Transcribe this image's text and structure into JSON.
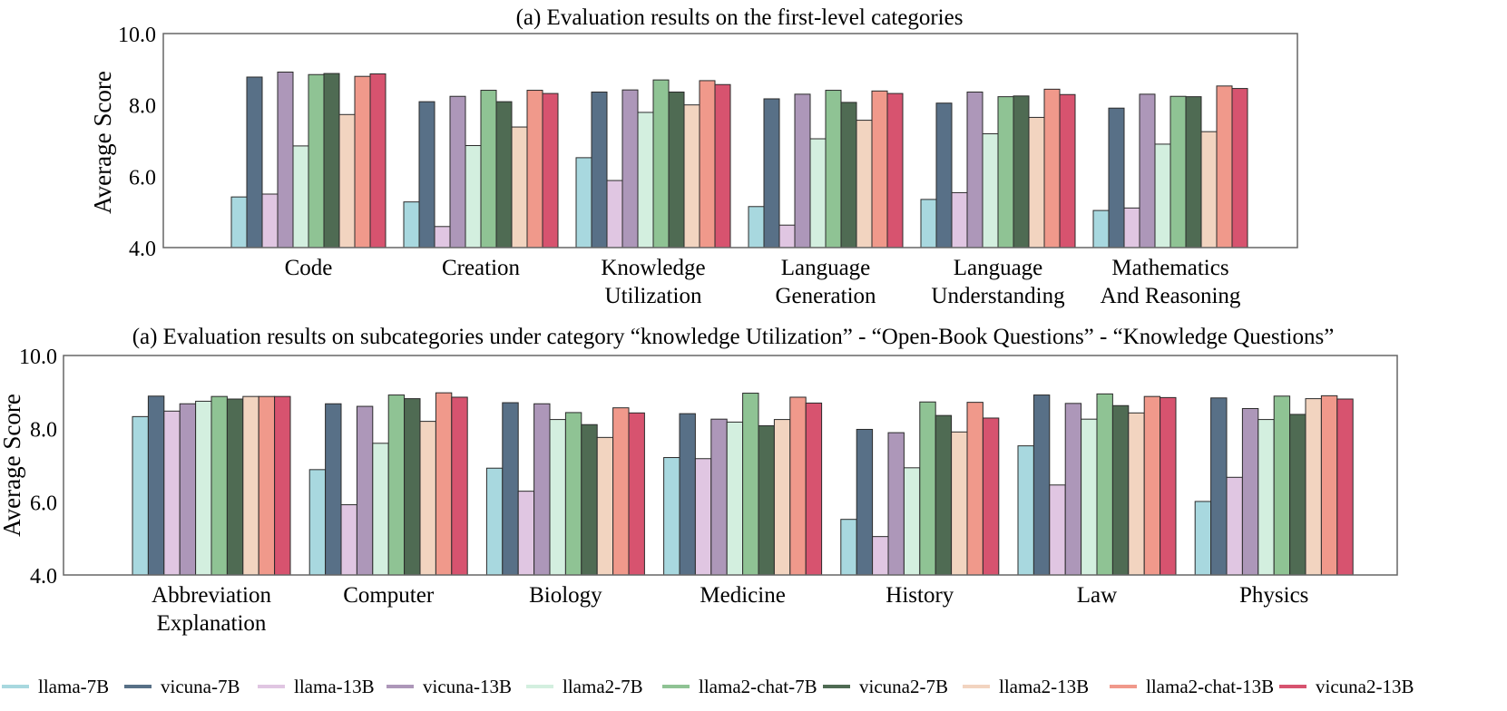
{
  "series": [
    {
      "name": "llama-7B",
      "color": "#a8d8df"
    },
    {
      "name": "vicuna-7B",
      "color": "#587087"
    },
    {
      "name": "llama-13B",
      "color": "#e0c6e2"
    },
    {
      "name": "vicuna-13B",
      "color": "#ad97b9"
    },
    {
      "name": "llama2-7B",
      "color": "#d3efdf"
    },
    {
      "name": "llama2-chat-7B",
      "color": "#8fc394"
    },
    {
      "name": "vicuna2-7B",
      "color": "#4f6b53"
    },
    {
      "name": "llama2-13B",
      "color": "#f2d4c0"
    },
    {
      "name": "llama2-chat-13B",
      "color": "#f0998b"
    },
    {
      "name": "vicuna2-13B",
      "color": "#d7536f"
    }
  ],
  "chart_data": [
    {
      "type": "bar",
      "title": "(a) Evaluation results on the first-level categories",
      "xlabel": "",
      "ylabel": "Average Score",
      "ylim": [
        4.0,
        10.0
      ],
      "yticks": [
        "4.0",
        "6.0",
        "8.0",
        "10.0"
      ],
      "categories": [
        [
          "Code"
        ],
        [
          "Creation"
        ],
        [
          "Knowledge",
          "Utilization"
        ],
        [
          "Language",
          "Generation"
        ],
        [
          "Language",
          "Understanding"
        ],
        [
          "Mathematics",
          "And Reasoning"
        ]
      ],
      "series": [
        {
          "name": "llama-7B",
          "values": [
            5.42,
            5.28,
            6.52,
            5.15,
            5.35,
            5.04
          ]
        },
        {
          "name": "vicuna-7B",
          "values": [
            8.78,
            8.09,
            8.36,
            8.17,
            8.05,
            7.91
          ]
        },
        {
          "name": "llama-13B",
          "values": [
            5.5,
            4.59,
            5.88,
            4.63,
            5.54,
            5.11
          ]
        },
        {
          "name": "vicuna-13B",
          "values": [
            8.92,
            8.24,
            8.42,
            8.3,
            8.36,
            8.3
          ]
        },
        {
          "name": "llama2-7B",
          "values": [
            6.85,
            6.86,
            7.79,
            7.05,
            7.19,
            6.9
          ]
        },
        {
          "name": "llama2-chat-7B",
          "values": [
            8.85,
            8.41,
            8.7,
            8.41,
            8.23,
            8.24
          ]
        },
        {
          "name": "vicuna2-7B",
          "values": [
            8.88,
            8.09,
            8.36,
            8.07,
            8.25,
            8.23
          ]
        },
        {
          "name": "llama2-13B",
          "values": [
            7.73,
            7.38,
            8.0,
            7.57,
            7.65,
            7.25
          ]
        },
        {
          "name": "llama2-chat-13B",
          "values": [
            8.8,
            8.41,
            8.68,
            8.39,
            8.44,
            8.53
          ]
        },
        {
          "name": "vicuna2-13B",
          "values": [
            8.87,
            8.32,
            8.57,
            8.32,
            8.29,
            8.46
          ]
        }
      ],
      "grid": false
    },
    {
      "type": "bar",
      "title": "(a) Evaluation results on subcategories under category “knowledge Utilization” - “Open-Book Questions” - “Knowledge Questions”",
      "xlabel": "",
      "ylabel": "Average Score",
      "ylim": [
        4.0,
        10.0
      ],
      "yticks": [
        "4.0",
        "6.0",
        "8.0",
        "10.0"
      ],
      "categories": [
        [
          "Abbreviation",
          "Explanation"
        ],
        [
          "Computer"
        ],
        [
          "Biology"
        ],
        [
          "Medicine"
        ],
        [
          "History"
        ],
        [
          "Law"
        ],
        [
          "Physics"
        ]
      ],
      "series": [
        {
          "name": "llama-7B",
          "values": [
            8.33,
            6.88,
            6.92,
            7.21,
            5.52,
            7.53,
            6.01
          ]
        },
        {
          "name": "vicuna-7B",
          "values": [
            8.89,
            8.68,
            8.71,
            8.41,
            7.98,
            8.92,
            8.84
          ]
        },
        {
          "name": "llama-13B",
          "values": [
            8.48,
            5.92,
            6.29,
            7.18,
            5.05,
            6.46,
            6.67
          ]
        },
        {
          "name": "vicuna-13B",
          "values": [
            8.68,
            8.61,
            8.68,
            8.26,
            7.89,
            8.69,
            8.55
          ]
        },
        {
          "name": "llama2-7B",
          "values": [
            8.75,
            7.6,
            8.25,
            8.18,
            6.93,
            8.26,
            8.25
          ]
        },
        {
          "name": "llama2-chat-7B",
          "values": [
            8.88,
            8.92,
            8.44,
            8.97,
            8.73,
            8.95,
            8.89
          ]
        },
        {
          "name": "vicuna2-7B",
          "values": [
            8.81,
            8.82,
            8.11,
            8.08,
            8.36,
            8.63,
            8.39
          ]
        },
        {
          "name": "llama2-13B",
          "values": [
            8.88,
            8.2,
            7.76,
            8.25,
            7.91,
            8.43,
            8.82
          ]
        },
        {
          "name": "llama2-chat-13B",
          "values": [
            8.88,
            8.98,
            8.57,
            8.86,
            8.72,
            8.88,
            8.9
          ]
        },
        {
          "name": "vicuna2-13B",
          "values": [
            8.88,
            8.86,
            8.43,
            8.7,
            8.29,
            8.85,
            8.81
          ]
        }
      ],
      "grid": false
    }
  ],
  "legend": {
    "placement": "bottom"
  }
}
